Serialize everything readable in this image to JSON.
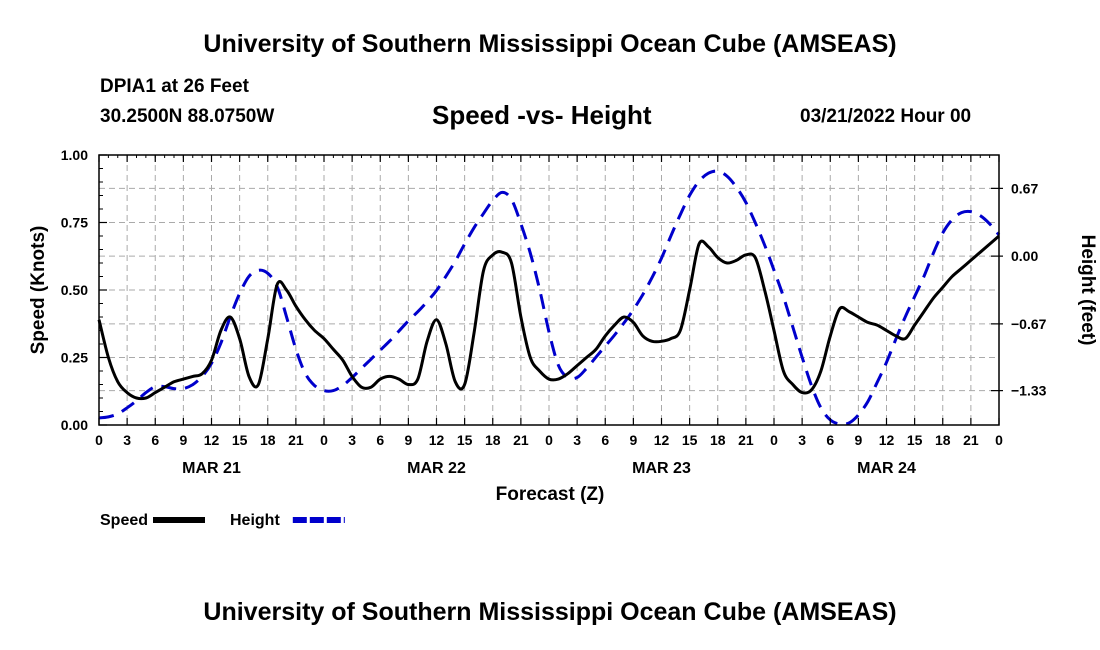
{
  "header": {
    "title": "University of Southern Mississippi Ocean Cube (AMSEAS)",
    "station": "DPIA1 at 26 Feet",
    "coords": "30.2500N  88.0750W",
    "subtitle": "Speed -vs- Height",
    "datetime": "03/21/2022 Hour 00"
  },
  "footer": {
    "title": "University of Southern Mississippi Ocean Cube (AMSEAS)"
  },
  "chart_data": {
    "type": "line",
    "title": "Speed -vs- Height",
    "xlabel": "Forecast (Z)",
    "ylabel": "Speed (Knots)",
    "y2label": "Height (feet)",
    "xlim": [
      0,
      96
    ],
    "ylim": [
      0,
      1
    ],
    "y2lim": [
      -1.67,
      1.0
    ],
    "grid": true,
    "x_tick_labels": [
      "0",
      "3",
      "6",
      "9",
      "12",
      "15",
      "18",
      "21",
      "0",
      "3",
      "6",
      "9",
      "12",
      "15",
      "18",
      "21",
      "0",
      "3",
      "6",
      "9",
      "12",
      "15",
      "18",
      "21",
      "0",
      "3",
      "6",
      "9",
      "12",
      "15",
      "18",
      "21",
      "0"
    ],
    "day_labels": [
      {
        "label": "MAR 21",
        "hour": 12
      },
      {
        "label": "MAR 22",
        "hour": 36
      },
      {
        "label": "MAR 23",
        "hour": 60
      },
      {
        "label": "MAR 24",
        "hour": 84
      }
    ],
    "y_ticks": [
      0,
      0.25,
      0.5,
      0.75,
      1.0
    ],
    "y_tick_labels": [
      "0.00",
      "0.25",
      "0.50",
      "0.75",
      "1.00"
    ],
    "y2_ticks": [
      -1.33,
      -0.67,
      0.0,
      0.67
    ],
    "y2_tick_labels": [
      "−1.33",
      "−0.67",
      "0.00",
      "0.67"
    ],
    "legend": [
      {
        "name": "Speed",
        "color": "#000000",
        "dash": "solid"
      },
      {
        "name": "Height",
        "color": "#0000cc",
        "dash": "dashed"
      }
    ],
    "series": [
      {
        "name": "Speed",
        "axis": "left",
        "color": "#000000",
        "x": [
          0,
          1,
          2,
          3,
          4,
          5,
          6,
          7,
          8,
          9,
          10,
          11,
          12,
          13,
          14,
          15,
          16,
          17,
          18,
          19,
          20,
          21,
          22,
          23,
          24,
          25,
          26,
          27,
          28,
          29,
          30,
          31,
          32,
          33,
          34,
          35,
          36,
          37,
          38,
          39,
          40,
          41,
          42,
          43,
          44,
          45,
          46,
          47,
          48,
          49,
          50,
          51,
          52,
          53,
          54,
          55,
          56,
          57,
          58,
          59,
          60,
          61,
          62,
          63,
          64,
          65,
          66,
          67,
          68,
          69,
          70,
          71,
          72,
          73,
          74,
          75,
          76,
          77,
          78,
          79,
          80,
          81,
          82,
          83,
          84,
          85,
          86,
          87,
          88,
          89,
          90,
          91,
          92,
          93,
          94,
          95,
          96
        ],
        "values": [
          0.39,
          0.25,
          0.16,
          0.12,
          0.1,
          0.1,
          0.12,
          0.14,
          0.16,
          0.17,
          0.18,
          0.19,
          0.24,
          0.35,
          0.4,
          0.32,
          0.18,
          0.15,
          0.32,
          0.52,
          0.5,
          0.44,
          0.39,
          0.35,
          0.32,
          0.28,
          0.24,
          0.18,
          0.14,
          0.14,
          0.17,
          0.18,
          0.17,
          0.15,
          0.17,
          0.31,
          0.39,
          0.3,
          0.16,
          0.15,
          0.34,
          0.57,
          0.63,
          0.64,
          0.6,
          0.4,
          0.25,
          0.2,
          0.17,
          0.17,
          0.19,
          0.22,
          0.25,
          0.28,
          0.33,
          0.37,
          0.4,
          0.38,
          0.33,
          0.31,
          0.31,
          0.32,
          0.35,
          0.5,
          0.67,
          0.66,
          0.62,
          0.6,
          0.61,
          0.63,
          0.62,
          0.5,
          0.35,
          0.2,
          0.15,
          0.12,
          0.13,
          0.2,
          0.33,
          0.43,
          0.42,
          0.4,
          0.38,
          0.37,
          0.35,
          0.33,
          0.32,
          0.37,
          0.42,
          0.47,
          0.51,
          0.55,
          0.58,
          0.61,
          0.64,
          0.67,
          0.7
        ]
      },
      {
        "name": "Height",
        "axis": "right",
        "color": "#0000cc",
        "x": [
          0,
          1,
          2,
          3,
          4,
          5,
          6,
          7,
          8,
          9,
          10,
          11,
          12,
          13,
          14,
          15,
          16,
          17,
          18,
          19,
          20,
          21,
          22,
          23,
          24,
          25,
          26,
          27,
          28,
          29,
          30,
          31,
          32,
          33,
          34,
          35,
          36,
          37,
          38,
          39,
          40,
          41,
          42,
          43,
          44,
          45,
          46,
          47,
          48,
          49,
          50,
          51,
          52,
          53,
          54,
          55,
          56,
          57,
          58,
          59,
          60,
          61,
          62,
          63,
          64,
          65,
          66,
          67,
          68,
          69,
          70,
          71,
          72,
          73,
          74,
          75,
          76,
          77,
          78,
          79,
          80,
          81,
          82,
          83,
          84,
          85,
          86,
          87,
          88,
          89,
          90,
          91,
          92,
          93,
          94,
          95,
          96
        ],
        "values": [
          -1.6,
          -1.59,
          -1.56,
          -1.5,
          -1.43,
          -1.35,
          -1.29,
          -1.29,
          -1.31,
          -1.31,
          -1.27,
          -1.19,
          -1.06,
          -0.86,
          -0.6,
          -0.37,
          -0.2,
          -0.14,
          -0.17,
          -0.3,
          -0.6,
          -0.92,
          -1.16,
          -1.28,
          -1.33,
          -1.33,
          -1.28,
          -1.2,
          -1.11,
          -1.02,
          -0.93,
          -0.84,
          -0.74,
          -0.64,
          -0.55,
          -0.45,
          -0.34,
          -0.2,
          -0.05,
          0.12,
          0.28,
          0.42,
          0.55,
          0.63,
          0.56,
          0.32,
          0.03,
          -0.33,
          -0.75,
          -1.08,
          -1.2,
          -1.2,
          -1.11,
          -1.0,
          -0.89,
          -0.78,
          -0.66,
          -0.53,
          -0.38,
          -0.21,
          -0.02,
          0.2,
          0.41,
          0.6,
          0.74,
          0.82,
          0.84,
          0.79,
          0.68,
          0.53,
          0.33,
          0.11,
          -0.14,
          -0.4,
          -0.7,
          -1.0,
          -1.28,
          -1.5,
          -1.62,
          -1.66,
          -1.65,
          -1.57,
          -1.44,
          -1.25,
          -1.05,
          -0.82,
          -0.6,
          -0.4,
          -0.2,
          0.03,
          0.23,
          0.36,
          0.43,
          0.44,
          0.4,
          0.32,
          0.21
        ]
      }
    ]
  }
}
